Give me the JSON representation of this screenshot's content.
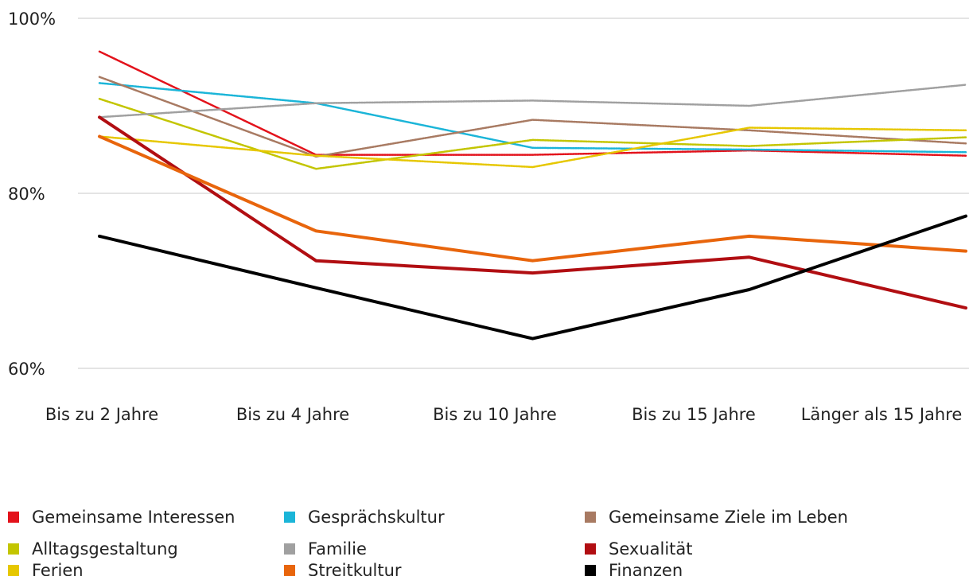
{
  "chart_data": {
    "type": "line",
    "categories": [
      "Bis zu 2 Jahre",
      "Bis zu 4 Jahre",
      "Bis zu 10 Jahre",
      "Bis zu 15 Jahre",
      "Länger als 15 Jahre"
    ],
    "ylim": [
      60,
      100
    ],
    "yticks": [
      {
        "value": 60,
        "label": "60%"
      },
      {
        "value": 80,
        "label": "80%"
      },
      {
        "value": 100,
        "label": "100%"
      }
    ],
    "grid": true,
    "series": [
      {
        "name": "Gemeinsame Interessen",
        "color": "#e3121b",
        "line_style": "dotted",
        "values": [
          96.2,
          84.4,
          84.4,
          84.9,
          84.3
        ]
      },
      {
        "name": "Gesprächskultur",
        "color": "#1bb5d8",
        "line_style": "dotted",
        "values": [
          92.6,
          90.3,
          85.2,
          85.0,
          84.7
        ]
      },
      {
        "name": "Gemeinsame Ziele im Leben",
        "color": "#a87a62",
        "line_style": "dotted",
        "values": [
          93.3,
          84.2,
          88.4,
          87.2,
          85.7
        ]
      },
      {
        "name": "Alltagsgestaltung",
        "color": "#c3c500",
        "line_style": "dotted",
        "values": [
          90.8,
          82.8,
          86.1,
          85.4,
          86.4
        ]
      },
      {
        "name": "Familie",
        "color": "#a0a0a0",
        "line_style": "dotted",
        "values": [
          88.7,
          90.3,
          90.6,
          90.0,
          92.4
        ]
      },
      {
        "name": "Sexualität",
        "color": "#b10e12",
        "line_style": "solid",
        "values": [
          88.7,
          72.3,
          70.9,
          72.7,
          66.9
        ]
      },
      {
        "name": "Ferien",
        "color": "#e6c700",
        "line_style": "dotted",
        "values": [
          86.5,
          84.3,
          83.0,
          87.5,
          87.2
        ]
      },
      {
        "name": "Streitkultur",
        "color": "#e8650c",
        "line_style": "solid",
        "values": [
          86.5,
          75.7,
          72.3,
          75.1,
          73.4
        ]
      },
      {
        "name": "Finanzen",
        "color": "#000000",
        "line_style": "solid",
        "values": [
          75.1,
          69.2,
          63.4,
          69.0,
          77.4
        ]
      }
    ]
  }
}
